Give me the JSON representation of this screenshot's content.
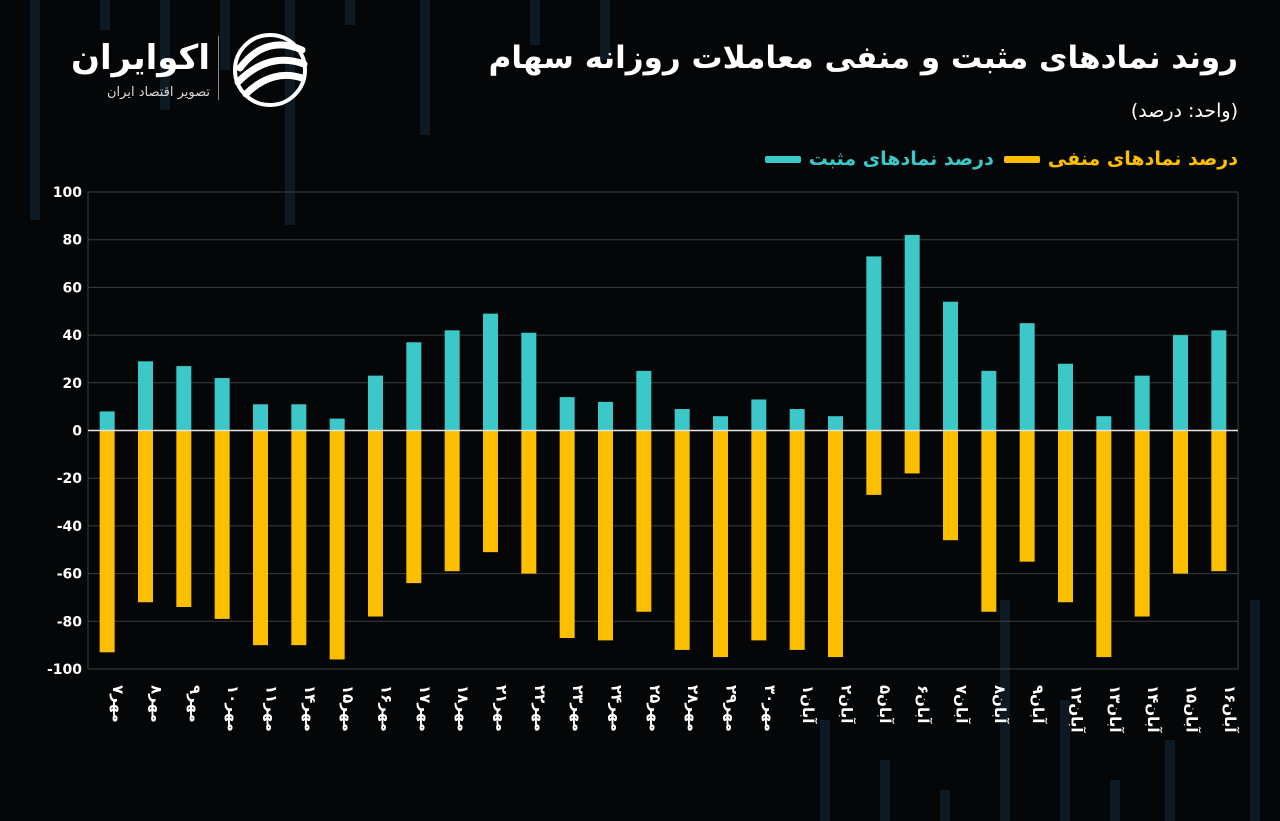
{
  "header": {
    "title": "روند نمادهای مثبت و منفی معاملات روزانه سهام",
    "unit": "(واحد: درصد)"
  },
  "logo": {
    "name": "اکوایران",
    "tagline": "تصویر اقتصاد ایران",
    "icon": "ecoiran-swirl-icon"
  },
  "colors": {
    "positive": "#3cc8c8",
    "negative": "#fcbf00",
    "grid": "#3a3d40",
    "zero_line": "#e6e6e6",
    "background": "#050607"
  },
  "chart_data": {
    "type": "bar",
    "title": "روند نمادهای مثبت و منفی معاملات روزانه سهام",
    "unit": "(واحد: درصد)",
    "xlabel": "",
    "ylabel": "",
    "ylim": [
      -100,
      100
    ],
    "yticks": [
      100,
      80,
      60,
      40,
      20,
      0,
      -20,
      -40,
      -60,
      -80,
      -100
    ],
    "ytick_labels": [
      "100",
      "80",
      "60",
      "40",
      "20",
      "0",
      "-20",
      "-40",
      "-60",
      "-80",
      "-100"
    ],
    "grid": true,
    "legend_position": "top-right",
    "categories": [
      "مهر۷",
      "مهر۸",
      "مهر۹",
      "مهر۱۰",
      "مهر۱۱",
      "مهر۱۴",
      "مهر۱۵",
      "مهر۱۶",
      "مهر۱۷",
      "مهر۱۸",
      "مهر۲۱",
      "مهر۲۲",
      "مهر۲۳",
      "مهر۲۴",
      "مهر۲۵",
      "مهر۲۸",
      "مهر۲۹",
      "مهر۳۰",
      "آبان۱",
      "آبان۲",
      "آبان۵",
      "آبان۶",
      "آبان۷",
      "آبان۸",
      "آبان۹",
      "آبان۱۲",
      "آبان۱۳",
      "آبان۱۴",
      "آبان۱۵",
      "آبان۱۶"
    ],
    "series": [
      {
        "name": "درصد نمادهای مثبت",
        "color": "#3cc8c8",
        "values": [
          8,
          29,
          27,
          22,
          11,
          11,
          5,
          23,
          37,
          42,
          49,
          41,
          14,
          12,
          25,
          9,
          6,
          13,
          9,
          6,
          73,
          82,
          54,
          25,
          45,
          28,
          6,
          23,
          40,
          42
        ]
      },
      {
        "name": "درصد نمادهای منفی",
        "color": "#fcbf00",
        "values": [
          -93,
          -72,
          -74,
          -79,
          -90,
          -90,
          -96,
          -78,
          -64,
          -59,
          -51,
          -60,
          -87,
          -88,
          -76,
          -92,
          -95,
          -88,
          -92,
          -95,
          -27,
          -18,
          -46,
          -76,
          -55,
          -72,
          -95,
          -78,
          -60,
          -59
        ]
      }
    ]
  }
}
